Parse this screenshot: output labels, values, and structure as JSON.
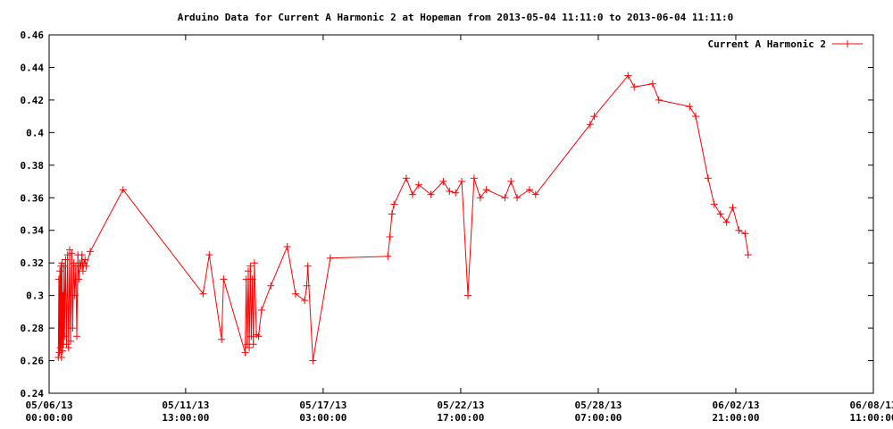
{
  "chart_data": {
    "type": "line",
    "title": "Arduino Data for Current A Harmonic 2 at Hopeman from 2013-05-04 11:11:0 to 2013-06-04 11:11:0",
    "xlabel": "",
    "ylabel": "",
    "legend_position": "top-right",
    "grid": false,
    "x_range": [
      "05/06/13 00:00:00",
      "06/08/13 11:00:00"
    ],
    "ylim": [
      0.24,
      0.46
    ],
    "y_ticks": [
      "0.24",
      "0.26",
      "0.28",
      "0.3",
      "0.32",
      "0.34",
      "0.36",
      "0.38",
      "0.4",
      "0.42",
      "0.44",
      "0.46"
    ],
    "x_ticks": [
      {
        "date": "05/06/13",
        "time": "00:00:00"
      },
      {
        "date": "05/11/13",
        "time": "13:00:00"
      },
      {
        "date": "05/17/13",
        "time": "03:00:00"
      },
      {
        "date": "05/22/13",
        "time": "17:00:00"
      },
      {
        "date": "05/28/13",
        "time": "07:00:00"
      },
      {
        "date": "06/02/13",
        "time": "21:00:00"
      },
      {
        "date": "06/08/13",
        "time": "11:00:00"
      }
    ],
    "series": [
      {
        "name": "Current A Harmonic 2",
        "color": "#ff0000",
        "x": [
          "2013-05-06 09:00",
          "2013-05-06 09:30",
          "2013-05-06 10:00",
          "2013-05-06 10:30",
          "2013-05-06 11:00",
          "2013-05-06 11:30",
          "2013-05-06 12:00",
          "2013-05-06 12:30",
          "2013-05-06 13:00",
          "2013-05-06 13:30",
          "2013-05-06 14:00",
          "2013-05-06 14:30",
          "2013-05-06 15:00",
          "2013-05-06 16:00",
          "2013-05-06 17:00",
          "2013-05-06 18:00",
          "2013-05-06 19:00",
          "2013-05-06 20:00",
          "2013-05-06 21:00",
          "2013-05-06 22:00",
          "2013-05-06 23:00",
          "2013-05-07 00:00",
          "2013-05-07 01:00",
          "2013-05-07 02:00",
          "2013-05-07 03:00",
          "2013-05-07 04:00",
          "2013-05-07 05:00",
          "2013-05-07 06:00",
          "2013-05-07 07:00",
          "2013-05-07 08:00",
          "2013-05-07 09:00",
          "2013-05-07 10:00",
          "2013-05-07 11:00",
          "2013-05-07 12:00",
          "2013-05-07 16:00",
          "2013-05-09 00:00",
          "2013-05-12 06:00",
          "2013-05-12 12:00",
          "2013-05-13 00:00",
          "2013-05-13 02:00",
          "2013-05-13 23:00",
          "2013-05-14 00:00",
          "2013-05-14 01:00",
          "2013-05-14 02:00",
          "2013-05-14 03:00",
          "2013-05-14 04:00",
          "2013-05-14 05:00",
          "2013-05-14 06:00",
          "2013-05-14 07:00",
          "2013-05-14 08:00",
          "2013-05-14 10:00",
          "2013-05-14 12:00",
          "2013-05-14 15:00",
          "2013-05-15 00:00",
          "2013-05-15 16:00",
          "2013-05-16 00:00",
          "2013-05-16 09:00",
          "2013-05-16 11:00",
          "2013-05-16 12:00",
          "2013-05-16 17:00",
          "2013-05-17 10:00",
          "2013-05-19 18:00",
          "2013-05-19 20:00",
          "2013-05-19 22:00",
          "2013-05-20 00:00",
          "2013-05-20 12:00",
          "2013-05-20 18:00",
          "2013-05-21 00:00",
          "2013-05-21 12:00",
          "2013-05-22 00:00",
          "2013-05-22 06:00",
          "2013-05-22 12:00",
          "2013-05-22 18:00",
          "2013-05-23 00:00",
          "2013-05-23 06:00",
          "2013-05-23 12:00",
          "2013-05-23 18:00",
          "2013-05-24 12:00",
          "2013-05-24 18:00",
          "2013-05-25 00:00",
          "2013-05-25 12:00",
          "2013-05-25 18:00",
          "2013-05-27 23:00",
          "2013-05-28 03:00",
          "2013-05-29 12:00",
          "2013-05-29 18:00",
          "2013-05-30 12:00",
          "2013-05-30 18:00",
          "2013-06-01 00:00",
          "2013-06-01 06:00",
          "2013-06-01 18:00",
          "2013-06-02 00:00",
          "2013-06-02 06:00",
          "2013-06-02 12:00",
          "2013-06-02 18:00",
          "2013-06-03 00:00",
          "2013-06-03 06:00",
          "2013-06-03 09:00"
        ],
        "y": [
          0.262,
          0.31,
          0.265,
          0.315,
          0.268,
          0.318,
          0.262,
          0.32,
          0.266,
          0.3,
          0.27,
          0.318,
          0.275,
          0.322,
          0.27,
          0.325,
          0.268,
          0.328,
          0.272,
          0.326,
          0.28,
          0.32,
          0.3,
          0.318,
          0.275,
          0.325,
          0.31,
          0.32,
          0.318,
          0.325,
          0.315,
          0.32,
          0.322,
          0.318,
          0.327,
          0.365,
          0.301,
          0.325,
          0.273,
          0.31,
          0.265,
          0.31,
          0.27,
          0.315,
          0.268,
          0.318,
          0.275,
          0.31,
          0.27,
          0.32,
          0.276,
          0.275,
          0.291,
          0.306,
          0.33,
          0.301,
          0.297,
          0.306,
          0.318,
          0.26,
          0.323,
          0.324,
          0.336,
          0.35,
          0.356,
          0.372,
          0.362,
          0.368,
          0.362,
          0.37,
          0.364,
          0.363,
          0.37,
          0.3,
          0.372,
          0.36,
          0.365,
          0.36,
          0.37,
          0.36,
          0.365,
          0.362,
          0.405,
          0.41,
          0.435,
          0.428,
          0.43,
          0.42,
          0.416,
          0.41,
          0.372,
          0.356,
          0.35,
          0.345,
          0.354,
          0.34,
          0.338,
          0.325
        ]
      }
    ]
  }
}
